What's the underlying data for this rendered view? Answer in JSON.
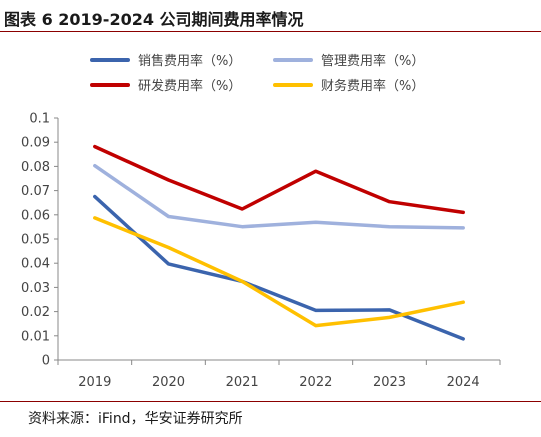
{
  "title": "图表 6 2019-2024 公司期间费用率情况",
  "source": "资料来源：iFind，华安证券研究所",
  "chart_data": {
    "type": "line",
    "x": [
      "2019",
      "2020",
      "2021",
      "2022",
      "2023",
      "2024"
    ],
    "ylim": [
      0,
      0.1
    ],
    "yticks": [
      "0",
      "0.01",
      "0.02",
      "0.03",
      "0.04",
      "0.05",
      "0.06",
      "0.07",
      "0.08",
      "0.09",
      "0.1"
    ],
    "grid": false,
    "legend_position": "top",
    "series": [
      {
        "name": "销售费用率（%）",
        "color": "#3b64ad",
        "values": [
          0.0675,
          0.0397,
          0.0325,
          0.0205,
          0.0207,
          0.0087
        ]
      },
      {
        "name": "管理费用率（%）",
        "color": "#9fb1dd",
        "values": [
          0.0803,
          0.0593,
          0.0551,
          0.0569,
          0.0551,
          0.0546
        ]
      },
      {
        "name": "研发费用率（%）",
        "color": "#c00000",
        "values": [
          0.0882,
          0.0744,
          0.0624,
          0.078,
          0.0654,
          0.061
        ]
      },
      {
        "name": "财务费用率（%）",
        "color": "#ffc000",
        "values": [
          0.0587,
          0.0465,
          0.0325,
          0.0142,
          0.0176,
          0.0239
        ]
      }
    ]
  }
}
